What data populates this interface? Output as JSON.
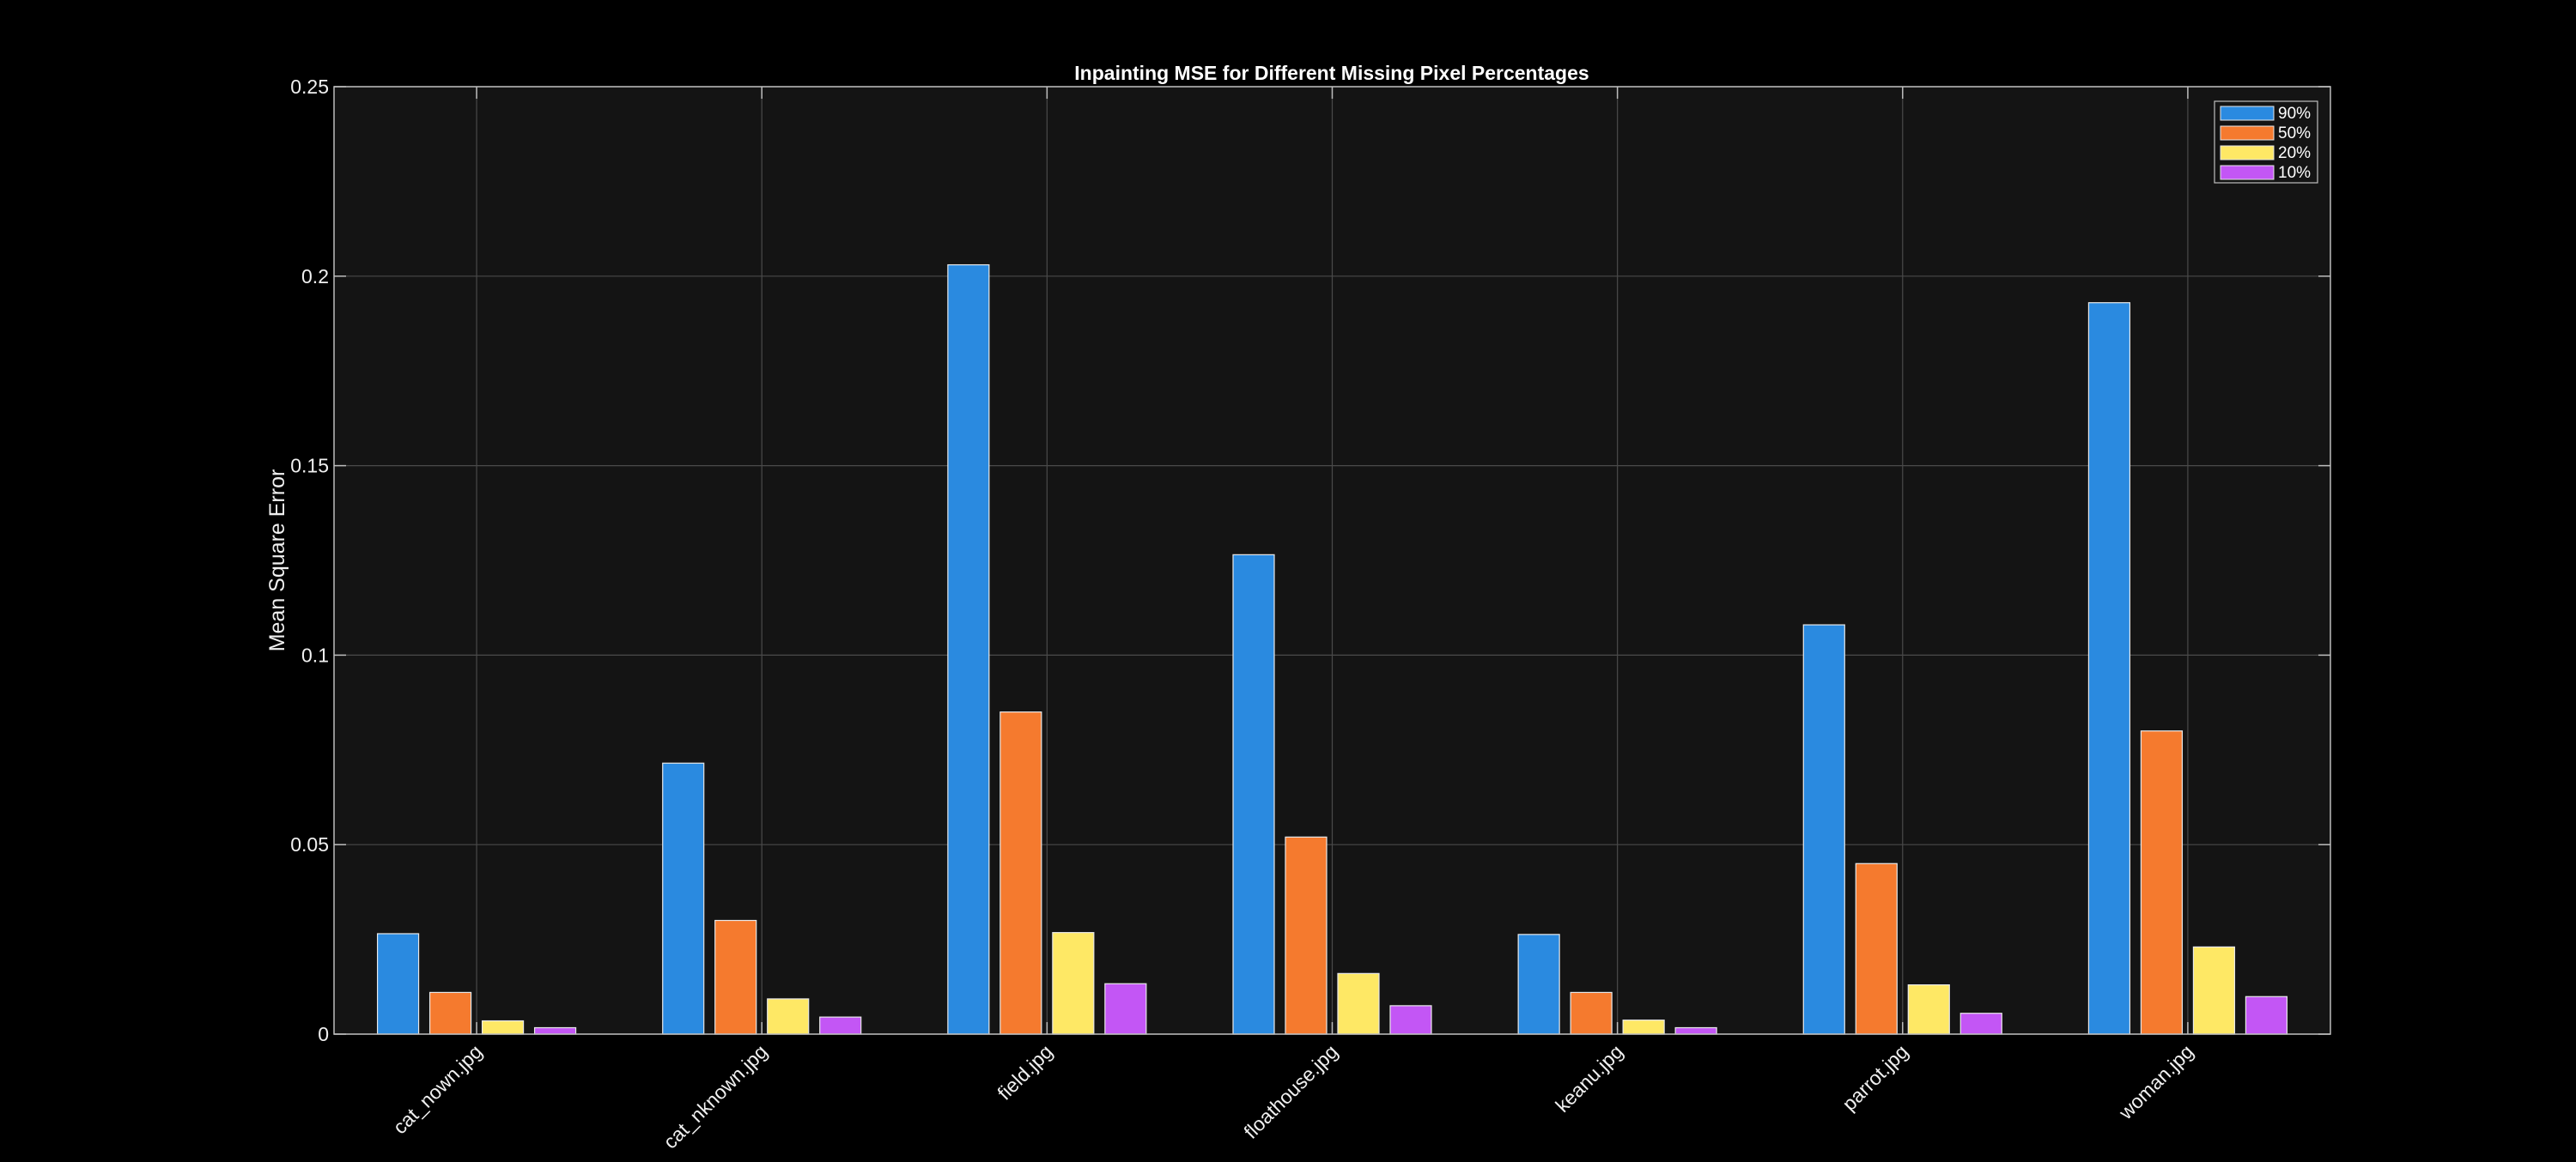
{
  "chart_data": {
    "type": "bar",
    "title": "Inpainting MSE for Different Missing Pixel Percentages",
    "xlabel": "",
    "ylabel": "Mean Square Error",
    "ylim": [
      0,
      0.25
    ],
    "yticks": [
      0,
      0.05,
      0.1,
      0.15,
      0.2,
      0.25
    ],
    "ytick_labels": [
      "0",
      "0.05",
      "0.1",
      "0.15",
      "0.2",
      "0.25"
    ],
    "categories": [
      "cat_nown.jpg",
      "cat_nknown.jpg",
      "field.jpg",
      "floathouse.jpg",
      "keanu.jpg",
      "parrot.jpg",
      "woman.jpg"
    ],
    "series": [
      {
        "name": "90%",
        "color": "#2A8AE0",
        "values": [
          0.0265,
          0.0715,
          0.203,
          0.1265,
          0.0263,
          0.108,
          0.193
        ]
      },
      {
        "name": "50%",
        "color": "#F57A2E",
        "values": [
          0.011,
          0.03,
          0.085,
          0.052,
          0.011,
          0.045,
          0.08
        ]
      },
      {
        "name": "20%",
        "color": "#FEE865",
        "values": [
          0.0035,
          0.0093,
          0.0268,
          0.016,
          0.0037,
          0.013,
          0.023
        ]
      },
      {
        "name": "10%",
        "color": "#C356F5",
        "values": [
          0.0017,
          0.0045,
          0.0133,
          0.0075,
          0.0017,
          0.0055,
          0.0099
        ]
      }
    ],
    "grid": true,
    "legend_position": "top-right",
    "colors": {
      "figure_background": "#000000",
      "plot_background": "#141414",
      "grid": "#4a4a4a",
      "axis": "#bdbdbd",
      "text": "#f0f0f0"
    }
  }
}
